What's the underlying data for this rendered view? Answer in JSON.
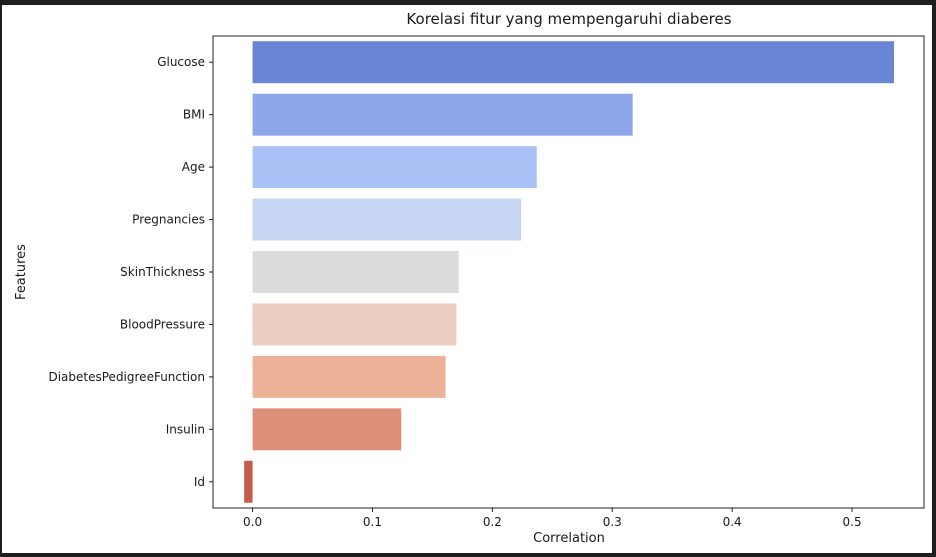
{
  "chart_data": {
    "type": "bar",
    "orientation": "horizontal",
    "title": "Korelasi fitur yang mempengaruhi diaberes",
    "xlabel": "Correlation",
    "ylabel": "Features",
    "categories": [
      "Glucose",
      "BMI",
      "Age",
      "Pregnancies",
      "SkinThickness",
      "BloodPressure",
      "DiabetesPedigreeFunction",
      "Insulin",
      "Id"
    ],
    "values": [
      0.535,
      0.317,
      0.237,
      0.224,
      0.172,
      0.17,
      0.161,
      0.124,
      -0.007
    ],
    "colors": [
      "#6a84d6",
      "#8ca7eb",
      "#a9c1f4",
      "#c6d5f1",
      "#dddcdc",
      "#eacdbf",
      "#ebb298",
      "#de8f78",
      "#c65a4d"
    ],
    "xlim": [
      -0.033,
      0.56
    ],
    "xticks": [
      0.0,
      0.1,
      0.2,
      0.3,
      0.4,
      0.5
    ],
    "xtick_labels": [
      "0.0",
      "0.1",
      "0.2",
      "0.3",
      "0.4",
      "0.5"
    ],
    "grid": false,
    "legend": "none",
    "palette": "coolwarm"
  }
}
